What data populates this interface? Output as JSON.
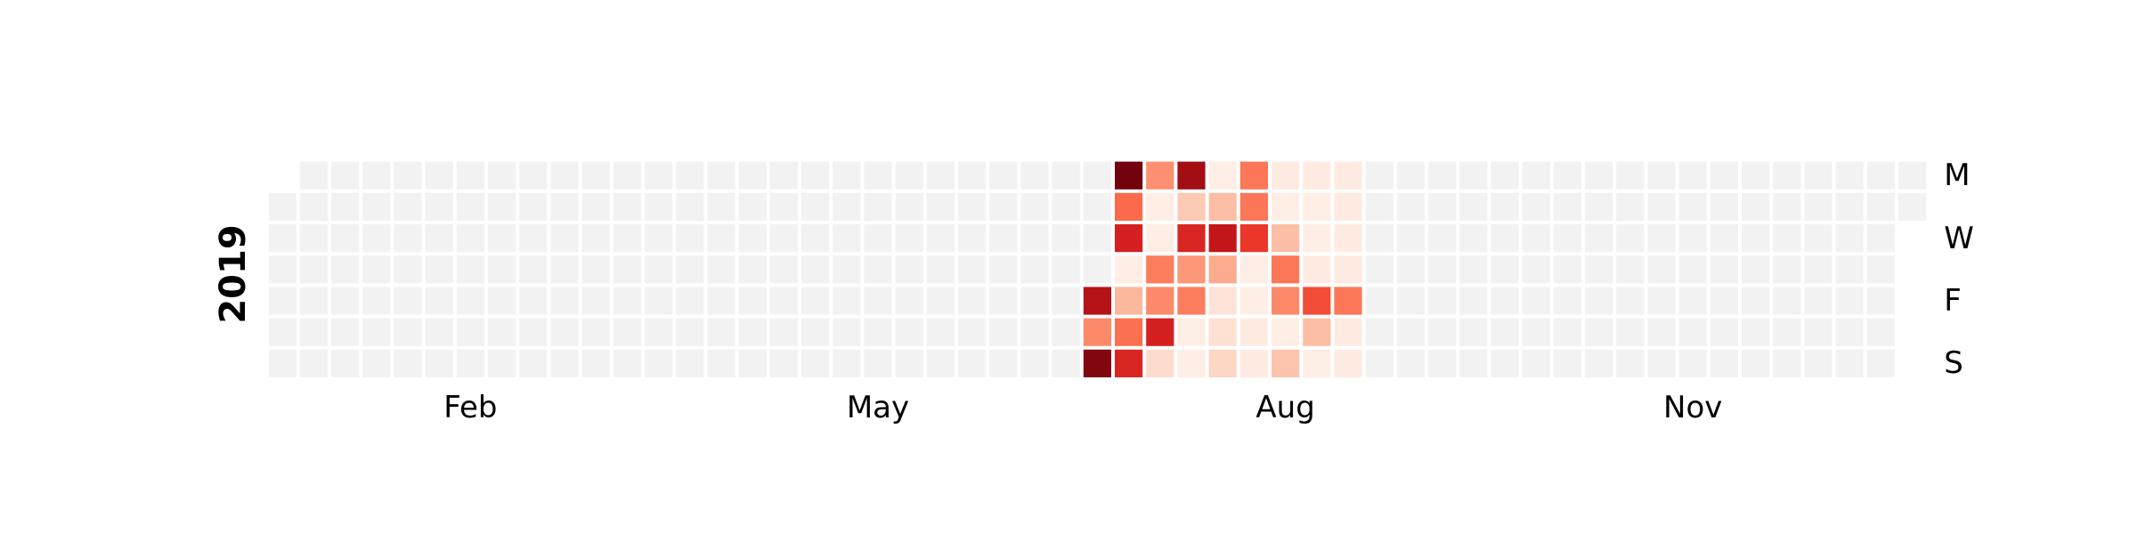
{
  "chart_data": {
    "type": "heatmap",
    "title": "",
    "year_label": "2019",
    "x_tick_labels": [
      "Feb",
      "May",
      "Aug",
      "Nov"
    ],
    "y_tick_labels": [
      "M",
      "W",
      "F",
      "S"
    ],
    "colormap": "Reds",
    "empty_color": "#f2f2f2",
    "grid_lines_color": "#ffffff",
    "dates_start": "2019-01-01",
    "dates_end": "2019-12-31",
    "active_weeks": [
      {
        "week_start": "2019-07-01",
        "values": [
          null,
          null,
          null,
          null,
          0.82,
          0.4,
          0.95
        ]
      },
      {
        "week_start": "2019-07-08",
        "values": [
          0.98,
          0.5,
          0.72,
          0.04,
          0.26,
          0.48,
          0.7
        ]
      },
      {
        "week_start": "2019-07-15",
        "values": [
          0.38,
          0.04,
          0.04,
          0.44,
          0.4,
          0.72,
          0.14
        ]
      },
      {
        "week_start": "2019-07-22",
        "values": [
          0.88,
          0.2,
          0.7,
          0.36,
          0.44,
          0.04,
          0.04
        ]
      },
      {
        "week_start": "2019-07-29",
        "values": [
          0.04,
          0.24,
          0.78,
          0.3,
          0.1,
          0.12,
          0.16
        ]
      },
      {
        "week_start": "2019-08-05",
        "values": [
          0.46,
          0.46,
          0.64,
          0.04,
          0.04,
          0.06,
          0.06
        ]
      },
      {
        "week_start": "2019-08-12",
        "values": [
          0.06,
          0.04,
          0.24,
          0.46,
          0.4,
          0.04,
          0.22
        ]
      },
      {
        "week_start": "2019-08-19",
        "values": [
          0.06,
          0.04,
          0.04,
          0.06,
          0.58,
          0.24,
          0.04
        ]
      },
      {
        "week_start": "2019-08-26",
        "values": [
          0.06,
          0.06,
          0.06,
          0.06,
          0.46,
          0.06,
          0.06
        ]
      }
    ]
  }
}
